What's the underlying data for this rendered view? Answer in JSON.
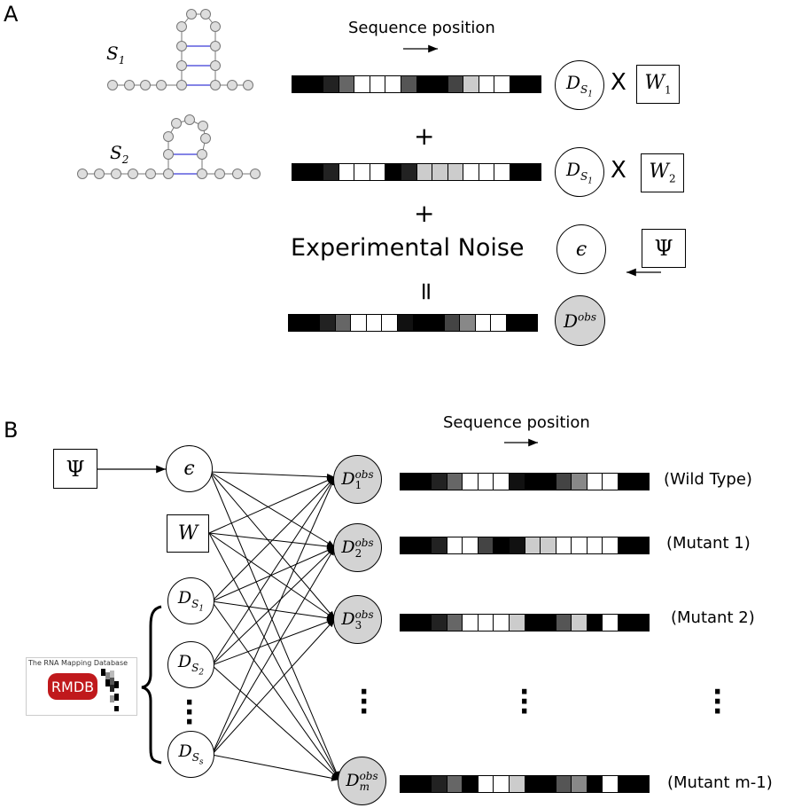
{
  "panels": {
    "a": "A",
    "b": "B"
  },
  "panel_a": {
    "seq_label": "Sequence position",
    "structure1_label": "S",
    "structure1_sub": "1",
    "structure2_label": "S",
    "structure2_sub": "2",
    "plus1": "+",
    "plus2": "+",
    "equals": "=",
    "times1": "X",
    "times2": "X",
    "noise_label": "Experimental Noise",
    "node_d1": {
      "main": "D",
      "sub": "S",
      "subsub": "1"
    },
    "node_d2": {
      "main": "D",
      "sub": "S",
      "subsub": "1"
    },
    "weight1": {
      "main": "W",
      "sub": "1"
    },
    "weight2": {
      "main": "W",
      "sub": "2"
    },
    "epsilon": "ϵ",
    "psi": "Ψ",
    "dobs": {
      "main": "D",
      "sup": "obs"
    },
    "bars": [
      [
        "#000",
        "#000",
        "#222",
        "#666",
        "#fff",
        "#fff",
        "#fff",
        "#555",
        "#000",
        "#000",
        "#444",
        "#ccc",
        "#fff",
        "#fff",
        "#000",
        "#000"
      ],
      [
        "#000",
        "#000",
        "#222",
        "#fff",
        "#fff",
        "#fff",
        "#000",
        "#222",
        "#ccc",
        "#ccc",
        "#ccc",
        "#fff",
        "#fff",
        "#fff",
        "#000",
        "#000"
      ],
      [
        "#000",
        "#000",
        "#222",
        "#666",
        "#fff",
        "#fff",
        "#fff",
        "#111",
        "#000",
        "#000",
        "#444",
        "#888",
        "#fff",
        "#fff",
        "#000",
        "#000"
      ]
    ]
  },
  "panel_b": {
    "seq_label": "Sequence position",
    "psi": "Ψ",
    "epsilon": "ϵ",
    "w": "W",
    "ds_nodes": [
      {
        "main": "D",
        "sub": "S",
        "subsub": "1"
      },
      {
        "main": "D",
        "sub": "S",
        "subsub": "2"
      },
      {
        "main": "D",
        "sub": "S",
        "subsub": "s"
      }
    ],
    "dobs_nodes": [
      {
        "main": "D",
        "sup": "obs",
        "sub": "1"
      },
      {
        "main": "D",
        "sup": "obs",
        "sub": "2"
      },
      {
        "main": "D",
        "sup": "obs",
        "sub": "3"
      },
      {
        "main": "D",
        "sup": "obs",
        "sub": "m"
      }
    ],
    "row_labels": [
      "(Wild Type)",
      "(Mutant 1)",
      "(Mutant 2)",
      "(Mutant m-1)"
    ],
    "bars": [
      [
        "#000",
        "#000",
        "#222",
        "#666",
        "#fff",
        "#fff",
        "#fff",
        "#111",
        "#000",
        "#000",
        "#444",
        "#888",
        "#fff",
        "#fff",
        "#000",
        "#000"
      ],
      [
        "#000",
        "#000",
        "#222",
        "#fff",
        "#fff",
        "#444",
        "#000",
        "#111",
        "#ccc",
        "#ccc",
        "#fff",
        "#fff",
        "#fff",
        "#fff",
        "#000",
        "#000"
      ],
      [
        "#000",
        "#000",
        "#222",
        "#666",
        "#fff",
        "#fff",
        "#fff",
        "#ccc",
        "#000",
        "#000",
        "#555",
        "#ccc",
        "#000",
        "#fff",
        "#000",
        "#000"
      ],
      [
        "#000",
        "#000",
        "#222",
        "#666",
        "#000",
        "#fff",
        "#fff",
        "#ccc",
        "#000",
        "#000",
        "#555",
        "#888",
        "#000",
        "#fff",
        "#000",
        "#000"
      ]
    ],
    "rmdb_title": "The RNA Mapping Database",
    "rmdb_logo": "RMDB"
  }
}
